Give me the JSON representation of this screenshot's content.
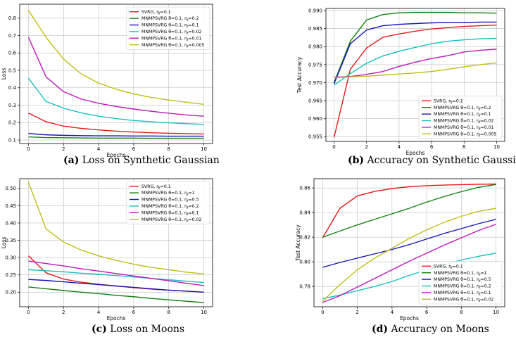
{
  "chart_data": [
    {
      "id": "a",
      "type": "line",
      "caption_label": "(a)",
      "caption_text": "Loss on Synthetic Gaussian",
      "xlabel": "Epochs",
      "ylabel": "Loss",
      "xlim": [
        -0.5,
        10.5
      ],
      "ylim": [
        0.08,
        0.88
      ],
      "xticks": [
        0,
        2,
        4,
        6,
        8,
        10
      ],
      "yticks": [
        0.1,
        0.2,
        0.3,
        0.4,
        0.5,
        0.6,
        0.7,
        0.8
      ],
      "ytick_labels": [
        "0.1",
        "0.2",
        "0.3",
        "0.4",
        "0.5",
        "0.6",
        "0.7",
        "0.8"
      ],
      "legend_position": "top-right",
      "x": [
        0,
        1,
        2,
        3,
        4,
        5,
        6,
        7,
        8,
        9,
        10
      ],
      "series": [
        {
          "name": "SVRG, η_f=0.1",
          "color": "#e8191b",
          "values": [
            0.255,
            0.205,
            0.18,
            0.167,
            0.158,
            0.151,
            0.146,
            0.142,
            0.139,
            0.137,
            0.135
          ]
        },
        {
          "name": "MNMPSVRG θ=0.1, η_f=0.2",
          "color": "#128012",
          "values": [
            0.118,
            0.114,
            0.113,
            0.112,
            0.111,
            0.111,
            0.111,
            0.11,
            0.11,
            0.11,
            0.11
          ]
        },
        {
          "name": "MNMPSVRG θ=0.1, η_f=0.1",
          "color": "#1515b8",
          "values": [
            0.138,
            0.13,
            0.127,
            0.125,
            0.124,
            0.124,
            0.123,
            0.123,
            0.122,
            0.122,
            0.122
          ]
        },
        {
          "name": "MNMPSVRG θ=0.1, η_f=0.02",
          "color": "#17bfbf",
          "values": [
            0.455,
            0.322,
            0.283,
            0.256,
            0.237,
            0.223,
            0.212,
            0.205,
            0.199,
            0.194,
            0.19
          ]
        },
        {
          "name": "MNMPSVRG θ=0.1, η_f=0.01",
          "color": "#bf17bf",
          "values": [
            0.69,
            0.463,
            0.378,
            0.336,
            0.311,
            0.293,
            0.278,
            0.265,
            0.254,
            0.244,
            0.237
          ]
        },
        {
          "name": "MNMPSVRG θ=0.1, η_f=0.005",
          "color": "#bfbf17",
          "values": [
            0.845,
            0.69,
            0.565,
            0.48,
            0.427,
            0.392,
            0.365,
            0.345,
            0.33,
            0.317,
            0.305
          ]
        }
      ]
    },
    {
      "id": "b",
      "type": "line",
      "caption_label": "(b)",
      "caption_text": "Accuracy on Synthetic Gaussian",
      "xlabel": "Epochs",
      "ylabel": "Test Accuracy",
      "xlim": [
        -0.5,
        10.5
      ],
      "ylim": [
        0.9537,
        0.9906
      ],
      "xticks": [
        0,
        2,
        4,
        6,
        8,
        10
      ],
      "yticks": [
        0.955,
        0.96,
        0.965,
        0.97,
        0.975,
        0.98,
        0.985,
        0.99
      ],
      "ytick_labels": [
        "0.955",
        "0.960",
        "0.965",
        "0.970",
        "0.975",
        "0.980",
        "0.985",
        "0.990"
      ],
      "legend_position": "bottom-right",
      "x": [
        0,
        1,
        2,
        3,
        4,
        5,
        6,
        7,
        8,
        9,
        10
      ],
      "series": [
        {
          "name": "SVRG, η_f=0.1",
          "color": "#e8191b",
          "values": [
            0.9548,
            0.9737,
            0.9796,
            0.9826,
            0.9835,
            0.9843,
            0.9849,
            0.9853,
            0.9856,
            0.9858,
            0.986
          ]
        },
        {
          "name": "MNMPSVRG θ=0.1, η_f=0.2",
          "color": "#128012",
          "values": [
            0.97,
            0.9815,
            0.9874,
            0.9889,
            0.9894,
            0.9895,
            0.9895,
            0.9895,
            0.9894,
            0.9894,
            0.9893
          ]
        },
        {
          "name": "MNMPSVRG θ=0.1, η_f=0.1",
          "color": "#1515b8",
          "values": [
            0.9697,
            0.9808,
            0.9846,
            0.9858,
            0.9862,
            0.9864,
            0.9866,
            0.9867,
            0.9867,
            0.9868,
            0.9868
          ]
        },
        {
          "name": "MNMPSVRG θ=0.1, η_f=0.02",
          "color": "#17bfbf",
          "values": [
            0.9693,
            0.9725,
            0.9754,
            0.9774,
            0.9787,
            0.9798,
            0.9808,
            0.9815,
            0.9819,
            0.9822,
            0.9823
          ]
        },
        {
          "name": "MNMPSVRG θ=0.1, η_f=0.01",
          "color": "#bf17bf",
          "values": [
            0.9715,
            0.9717,
            0.9723,
            0.9731,
            0.9745,
            0.9757,
            0.9767,
            0.9775,
            0.9785,
            0.979,
            0.9793
          ]
        },
        {
          "name": "MNMPSVRG θ=0.1, η_f=0.005",
          "color": "#bfbf17",
          "values": [
            0.9713,
            0.9716,
            0.9718,
            0.9721,
            0.9724,
            0.9727,
            0.9731,
            0.9737,
            0.9744,
            0.975,
            0.9755
          ]
        }
      ]
    },
    {
      "id": "c",
      "type": "line",
      "caption_label": "(c)",
      "caption_text": "Loss on Moons",
      "xlabel": "Epochs",
      "ylabel": "Loss",
      "xlim": [
        -0.5,
        10.5
      ],
      "ylim": [
        0.158,
        0.528
      ],
      "xticks": [
        0,
        2,
        4,
        6,
        8,
        10
      ],
      "yticks": [
        0.2,
        0.25,
        0.3,
        0.35,
        0.4,
        0.45,
        0.5
      ],
      "ytick_labels": [
        "0.20",
        "0.25",
        "0.30",
        "0.35",
        "0.40",
        "0.45",
        "0.50"
      ],
      "legend_position": "top-right",
      "x": [
        0,
        1,
        2,
        3,
        4,
        5,
        6,
        7,
        8,
        9,
        10
      ],
      "series": [
        {
          "name": "SVRG, η_f=0.1",
          "color": "#e8191b",
          "values": [
            0.305,
            0.256,
            0.238,
            0.229,
            0.223,
            0.218,
            0.213,
            0.209,
            0.206,
            0.203,
            0.2
          ]
        },
        {
          "name": "MNMPSVRG θ=0.1, η_f=1",
          "color": "#128012",
          "values": [
            0.215,
            0.21,
            0.205,
            0.2,
            0.196,
            0.191,
            0.187,
            0.182,
            0.178,
            0.174,
            0.17
          ]
        },
        {
          "name": "MNMPSVRG θ=0.1, η_f=0.5",
          "color": "#1515b8",
          "values": [
            0.237,
            0.234,
            0.23,
            0.226,
            0.222,
            0.218,
            0.214,
            0.21,
            0.206,
            0.203,
            0.2
          ]
        },
        {
          "name": "MNMPSVRG θ=0.1, η_f=0.2",
          "color": "#17bfbf",
          "values": [
            0.265,
            0.262,
            0.259,
            0.255,
            0.252,
            0.248,
            0.244,
            0.24,
            0.236,
            0.232,
            0.228
          ]
        },
        {
          "name": "MNMPSVRG θ=0.1, η_f=0.1",
          "color": "#bf17bf",
          "values": [
            0.29,
            0.283,
            0.276,
            0.268,
            0.261,
            0.254,
            0.247,
            0.24,
            0.233,
            0.226,
            0.219
          ]
        },
        {
          "name": "MNMPSVRG θ=0.1, η_f=0.02",
          "color": "#bfbf17",
          "values": [
            0.518,
            0.383,
            0.345,
            0.322,
            0.305,
            0.292,
            0.281,
            0.272,
            0.265,
            0.258,
            0.253
          ]
        }
      ]
    },
    {
      "id": "d",
      "type": "line",
      "caption_label": "(d)",
      "caption_text": "Accuracy on Moons",
      "xlabel": "Epochs",
      "ylabel": "Test Accuracy",
      "xlim": [
        -0.5,
        10.5
      ],
      "ylim": [
        0.7635,
        0.8675
      ],
      "xticks": [
        0,
        2,
        4,
        6,
        8,
        10
      ],
      "yticks": [
        0.78,
        0.8,
        0.82,
        0.84,
        0.86
      ],
      "ytick_labels": [
        "0.78",
        "0.80",
        "0.82",
        "0.84",
        "0.86"
      ],
      "legend_position": "bottom-right",
      "x": [
        0,
        1,
        2,
        3,
        4,
        5,
        6,
        7,
        8,
        9,
        10
      ],
      "series": [
        {
          "name": "SVRG, η_f=0.1",
          "color": "#e8191b",
          "values": [
            0.8195,
            0.8435,
            0.8535,
            0.8572,
            0.8595,
            0.861,
            0.8618,
            0.8623,
            0.8627,
            0.863,
            0.8632
          ]
        },
        {
          "name": "MNMPSVRG θ=0.1, η_f=1",
          "color": "#128012",
          "values": [
            0.82,
            0.825,
            0.83,
            0.8345,
            0.839,
            0.8435,
            0.8485,
            0.853,
            0.857,
            0.8605,
            0.8628
          ]
        },
        {
          "name": "MNMPSVRG θ=0.1, η_f=0.5",
          "color": "#1515b8",
          "values": [
            0.7955,
            0.7995,
            0.803,
            0.8065,
            0.81,
            0.814,
            0.8185,
            0.823,
            0.827,
            0.831,
            0.8345
          ]
        },
        {
          "name": "MNMPSVRG θ=0.1, η_f=0.2",
          "color": "#17bfbf",
          "values": [
            0.77,
            0.773,
            0.7765,
            0.78,
            0.784,
            0.789,
            0.7935,
            0.7975,
            0.8015,
            0.8045,
            0.807
          ]
        },
        {
          "name": "MNMPSVRG θ=0.1, η_f=0.1",
          "color": "#bf17bf",
          "values": [
            0.767,
            0.7725,
            0.7795,
            0.7865,
            0.7935,
            0.8005,
            0.807,
            0.8135,
            0.8195,
            0.8255,
            0.8305
          ]
        },
        {
          "name": "MNMPSVRG θ=0.1, η_f=0.02",
          "color": "#bfbf17",
          "values": [
            0.768,
            0.7815,
            0.7935,
            0.803,
            0.811,
            0.819,
            0.826,
            0.832,
            0.837,
            0.841,
            0.8435
          ]
        }
      ]
    }
  ]
}
